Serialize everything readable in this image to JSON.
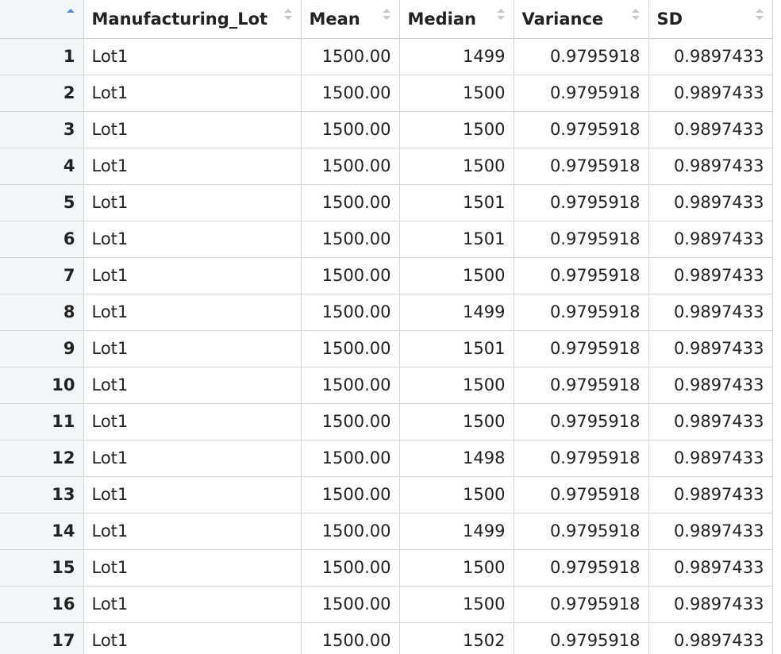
{
  "columns": [
    {
      "label": "",
      "sort": "asc"
    },
    {
      "label": "Manufacturing_Lot",
      "sort": "none"
    },
    {
      "label": "Mean",
      "sort": "none"
    },
    {
      "label": "Median",
      "sort": "none"
    },
    {
      "label": "Variance",
      "sort": "none"
    },
    {
      "label": "SD",
      "sort": "none"
    }
  ],
  "rows": [
    {
      "n": "1",
      "lot": "Lot1",
      "mean": "1500.00",
      "median": "1499",
      "variance": "0.9795918",
      "sd": "0.9897433"
    },
    {
      "n": "2",
      "lot": "Lot1",
      "mean": "1500.00",
      "median": "1500",
      "variance": "0.9795918",
      "sd": "0.9897433"
    },
    {
      "n": "3",
      "lot": "Lot1",
      "mean": "1500.00",
      "median": "1500",
      "variance": "0.9795918",
      "sd": "0.9897433"
    },
    {
      "n": "4",
      "lot": "Lot1",
      "mean": "1500.00",
      "median": "1500",
      "variance": "0.9795918",
      "sd": "0.9897433"
    },
    {
      "n": "5",
      "lot": "Lot1",
      "mean": "1500.00",
      "median": "1501",
      "variance": "0.9795918",
      "sd": "0.9897433"
    },
    {
      "n": "6",
      "lot": "Lot1",
      "mean": "1500.00",
      "median": "1501",
      "variance": "0.9795918",
      "sd": "0.9897433"
    },
    {
      "n": "7",
      "lot": "Lot1",
      "mean": "1500.00",
      "median": "1500",
      "variance": "0.9795918",
      "sd": "0.9897433"
    },
    {
      "n": "8",
      "lot": "Lot1",
      "mean": "1500.00",
      "median": "1499",
      "variance": "0.9795918",
      "sd": "0.9897433"
    },
    {
      "n": "9",
      "lot": "Lot1",
      "mean": "1500.00",
      "median": "1501",
      "variance": "0.9795918",
      "sd": "0.9897433"
    },
    {
      "n": "10",
      "lot": "Lot1",
      "mean": "1500.00",
      "median": "1500",
      "variance": "0.9795918",
      "sd": "0.9897433"
    },
    {
      "n": "11",
      "lot": "Lot1",
      "mean": "1500.00",
      "median": "1500",
      "variance": "0.9795918",
      "sd": "0.9897433"
    },
    {
      "n": "12",
      "lot": "Lot1",
      "mean": "1500.00",
      "median": "1498",
      "variance": "0.9795918",
      "sd": "0.9897433"
    },
    {
      "n": "13",
      "lot": "Lot1",
      "mean": "1500.00",
      "median": "1500",
      "variance": "0.9795918",
      "sd": "0.9897433"
    },
    {
      "n": "14",
      "lot": "Lot1",
      "mean": "1500.00",
      "median": "1499",
      "variance": "0.9795918",
      "sd": "0.9897433"
    },
    {
      "n": "15",
      "lot": "Lot1",
      "mean": "1500.00",
      "median": "1500",
      "variance": "0.9795918",
      "sd": "0.9897433"
    },
    {
      "n": "16",
      "lot": "Lot1",
      "mean": "1500.00",
      "median": "1500",
      "variance": "0.9795918",
      "sd": "0.9897433"
    },
    {
      "n": "17",
      "lot": "Lot1",
      "mean": "1500.00",
      "median": "1502",
      "variance": "0.9795918",
      "sd": "0.9897433"
    }
  ],
  "colors": {
    "sort_active": "#4a90d9",
    "sort_inactive": "#c8c8c8",
    "row_header_bg": "#f3f6f8",
    "grid_line": "#d6d6d6"
  },
  "icons": {
    "sort_asc": "sort-ascending-icon",
    "sort_none": "sort-icon"
  }
}
